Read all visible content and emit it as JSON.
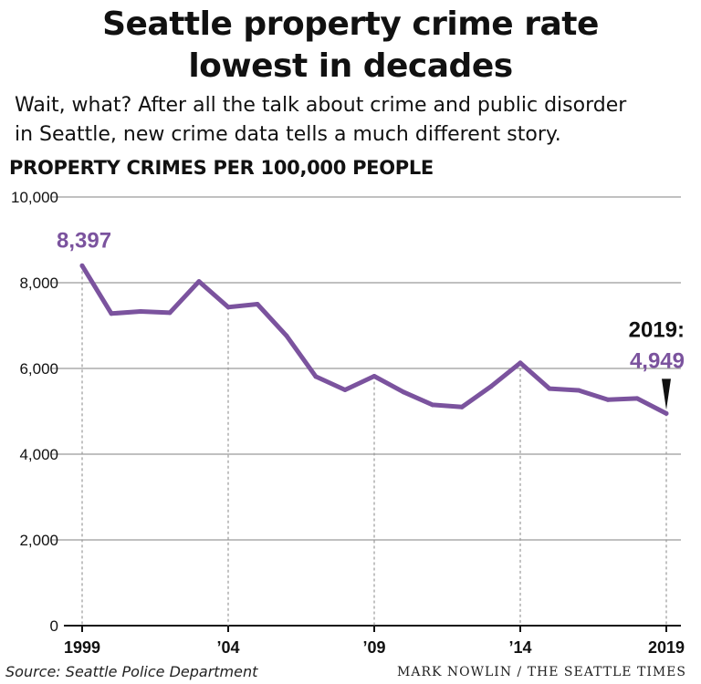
{
  "header": {
    "title_line1": "Seattle property crime rate",
    "title_line2": "lowest in decades",
    "subtitle_line1": "Wait, what? After all the talk about crime and public disorder",
    "subtitle_line2": "in Seattle, new crime data tells a much different story."
  },
  "footer": {
    "source": "Source: Seattle Police Department",
    "credit": "MARK NOWLIN / THE SEATTLE TIMES"
  },
  "colors": {
    "line": "#7b539e",
    "grid": "#9a9a9a",
    "axis": "#111111",
    "guide": "#9a9a9a"
  },
  "chart_data": {
    "type": "line",
    "ylabel": "PROPERTY CRIMES PER 100,000 PEOPLE",
    "xlabel": "",
    "ylim": [
      0,
      10000
    ],
    "xlim": [
      1999,
      2019
    ],
    "y_ticks": [
      0,
      2000,
      4000,
      6000,
      8000,
      10000
    ],
    "y_tick_labels": [
      "0",
      "2,000",
      "4,000",
      "6,000",
      "8,000",
      "10,000"
    ],
    "x_ticks": [
      1999,
      2004,
      2009,
      2014,
      2019
    ],
    "x_tick_labels": [
      "1999",
      "’04",
      "’09",
      "’14",
      "2019"
    ],
    "grid": "horizontal",
    "series": [
      {
        "x": [
          1999,
          2000,
          2001,
          2002,
          2003,
          2004,
          2005,
          2006,
          2007,
          2008,
          2009,
          2010,
          2011,
          2012,
          2013,
          2014,
          2015,
          2016,
          2017,
          2018,
          2019
        ],
        "values": [
          8397,
          7280,
          7330,
          7300,
          8030,
          7430,
          7500,
          6760,
          5810,
          5500,
          5820,
          5450,
          5150,
          5100,
          5580,
          6130,
          5530,
          5490,
          5270,
          5300,
          4949
        ]
      }
    ],
    "annotations": [
      {
        "x": 1999,
        "value": 8397,
        "label": "8,397"
      },
      {
        "x": 2019,
        "value": 4949,
        "label_year": "2019:",
        "label": "4,949"
      }
    ]
  }
}
